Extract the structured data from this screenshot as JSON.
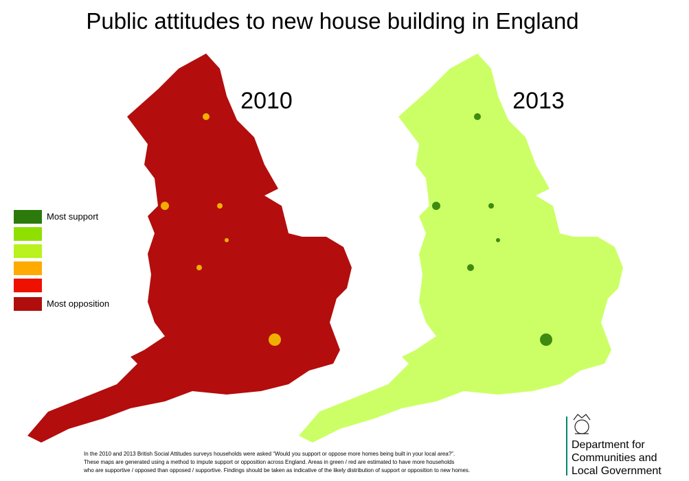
{
  "title": "Public attitudes to new house building in England",
  "maps": [
    {
      "label": "2010",
      "color": "#b30d0d"
    },
    {
      "label": "2013",
      "color": "#ccff66"
    }
  ],
  "legend": {
    "items": [
      {
        "label": "Most support",
        "color": "#2d7a0c"
      },
      {
        "color": "#8fe000"
      },
      {
        "color": "#b9f21f"
      },
      {
        "color": "#ffaa00"
      },
      {
        "color": "#ee1100"
      },
      {
        "label": "Most opposition",
        "color": "#b00d0d"
      }
    ]
  },
  "footnote": [
    "In the 2010 and 2013 British Social Attitudes surveys households were asked “Would you support or oppose more homes being built in your local area?”.",
    "These maps are generated using a method to impute support or opposition across England.  Areas in green / red are estimated to have more households",
    "who are supportive / opposed than opposed / supportive.  Findings should be taken as indicative of the likely distribution of support or opposition to new homes."
  ],
  "logo": {
    "lines": [
      "Department for",
      "Communities and",
      "Local Government"
    ]
  }
}
